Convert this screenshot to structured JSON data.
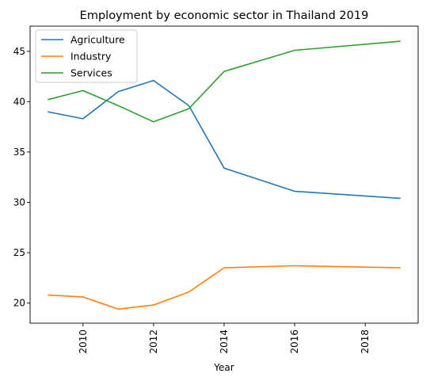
{
  "chart_data": {
    "type": "line",
    "title": "Employment by economic sector in Thailand 2019",
    "xlabel": "Year",
    "ylabel": "",
    "x": [
      2009,
      2010,
      2011,
      2012,
      2013,
      2014,
      2016,
      2019
    ],
    "xlim": [
      2008.5,
      2019.5
    ],
    "ylim": [
      18,
      47.5
    ],
    "xticks": [
      2010,
      2012,
      2014,
      2016,
      2018
    ],
    "yticks": [
      20,
      25,
      30,
      35,
      40,
      45
    ],
    "grid": false,
    "legend": "top-left",
    "series": [
      {
        "name": "Agriculture",
        "color": "#1f77b4",
        "values": [
          39.0,
          38.3,
          41.0,
          42.1,
          39.6,
          33.4,
          31.1,
          30.4
        ]
      },
      {
        "name": "Industry",
        "color": "#ff7f0e",
        "values": [
          20.8,
          20.6,
          19.4,
          19.8,
          21.1,
          23.5,
          23.7,
          23.5
        ]
      },
      {
        "name": "Services",
        "color": "#2ca02c",
        "values": [
          40.2,
          41.1,
          39.6,
          38.0,
          39.3,
          43.0,
          45.1,
          46.0
        ]
      }
    ]
  }
}
